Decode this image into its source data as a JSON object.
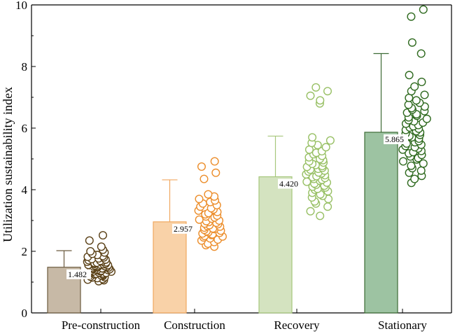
{
  "chart_data": {
    "type": "bar",
    "title": "",
    "xlabel": "",
    "ylabel": "Utilization sustainability index",
    "ylim": [
      0,
      10
    ],
    "yticks": [
      0,
      2,
      4,
      6,
      8,
      10
    ],
    "grid": false,
    "legend": "none",
    "categories": [
      "Pre-construction",
      "Construction",
      "Recovery",
      "Stationary"
    ],
    "values": [
      1.482,
      2.957,
      4.42,
      5.865
    ],
    "value_labels": [
      "1.482",
      "2.957",
      "4.420",
      "5.865"
    ],
    "error_upper": [
      2.02,
      4.32,
      5.74,
      8.42
    ],
    "colors": {
      "fills": [
        "#c7b9a6",
        "#f9d2a8",
        "#d4e3c0",
        "#9dc3a2"
      ],
      "edges": [
        "#6b5a3e",
        "#f0a860",
        "#a7c77c",
        "#3d6b35"
      ],
      "points": [
        "#5a4016",
        "#ec8e2c",
        "#98c065",
        "#2f6a1f"
      ]
    },
    "scatter": [
      [
        1.03,
        1.06,
        1.08,
        1.1,
        1.13,
        1.15,
        1.16,
        1.18,
        1.2,
        1.21,
        1.22,
        1.24,
        1.25,
        1.27,
        1.28,
        1.29,
        1.3,
        1.31,
        1.33,
        1.34,
        1.35,
        1.36,
        1.37,
        1.38,
        1.39,
        1.4,
        1.41,
        1.42,
        1.43,
        1.44,
        1.45,
        1.46,
        1.47,
        1.48,
        1.49,
        1.5,
        1.51,
        1.52,
        1.53,
        1.54,
        1.55,
        1.56,
        1.57,
        1.58,
        1.59,
        1.6,
        1.62,
        1.63,
        1.64,
        1.66,
        1.67,
        1.69,
        1.71,
        1.73,
        1.75,
        1.77,
        1.8,
        1.82,
        1.85,
        1.88,
        1.92,
        1.96,
        2.0,
        2.05,
        2.15,
        2.35,
        2.52
      ],
      [
        2.15,
        2.2,
        2.25,
        2.3,
        2.35,
        2.38,
        2.42,
        2.45,
        2.48,
        2.5,
        2.53,
        2.55,
        2.58,
        2.6,
        2.62,
        2.65,
        2.67,
        2.7,
        2.72,
        2.74,
        2.77,
        2.8,
        2.82,
        2.85,
        2.88,
        2.9,
        2.93,
        2.95,
        2.98,
        3.0,
        3.03,
        3.06,
        3.1,
        3.13,
        3.16,
        3.2,
        3.24,
        3.28,
        3.32,
        3.36,
        3.4,
        3.45,
        3.5,
        3.55,
        3.6,
        3.65,
        3.7,
        3.78,
        3.85,
        4.35,
        4.55,
        4.75,
        4.92
      ],
      [
        3.15,
        3.3,
        3.45,
        3.55,
        3.62,
        3.7,
        3.75,
        3.8,
        3.85,
        3.9,
        3.95,
        4.0,
        4.03,
        4.07,
        4.1,
        4.13,
        4.16,
        4.2,
        4.23,
        4.26,
        4.29,
        4.32,
        4.35,
        4.38,
        4.41,
        4.44,
        4.47,
        4.5,
        4.53,
        4.56,
        4.59,
        4.62,
        4.65,
        4.68,
        4.71,
        4.74,
        4.77,
        4.8,
        4.84,
        4.88,
        4.92,
        4.96,
        5.0,
        5.05,
        5.1,
        5.15,
        5.2,
        5.25,
        5.3,
        5.38,
        5.45,
        5.52,
        5.6,
        5.7,
        6.8,
        6.9,
        7.05,
        7.2,
        7.32
      ],
      [
        4.22,
        4.35,
        4.45,
        4.55,
        4.62,
        4.7,
        4.78,
        4.85,
        4.92,
        4.98,
        5.03,
        5.08,
        5.13,
        5.18,
        5.22,
        5.26,
        5.3,
        5.34,
        5.38,
        5.42,
        5.46,
        5.5,
        5.54,
        5.58,
        5.62,
        5.66,
        5.7,
        5.74,
        5.78,
        5.82,
        5.86,
        5.9,
        5.94,
        5.98,
        6.02,
        6.06,
        6.1,
        6.14,
        6.18,
        6.22,
        6.26,
        6.3,
        6.35,
        6.4,
        6.45,
        6.5,
        6.55,
        6.6,
        6.65,
        6.7,
        6.76,
        6.82,
        6.9,
        6.98,
        7.08,
        7.2,
        7.35,
        7.5,
        7.72,
        8.42,
        8.78,
        9.62,
        9.85
      ]
    ]
  }
}
